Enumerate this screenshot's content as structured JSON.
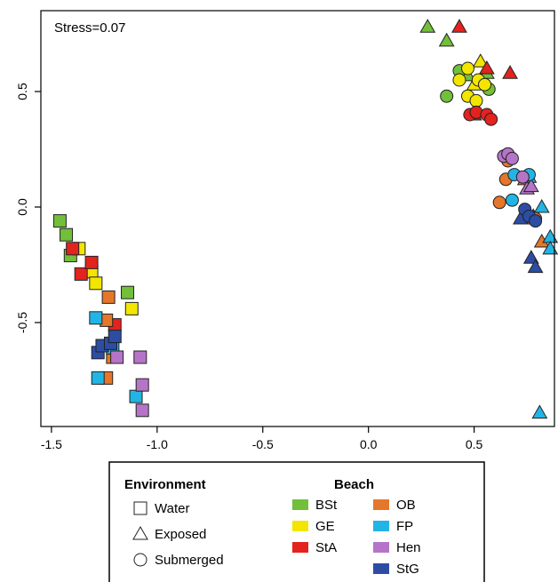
{
  "chart_data": {
    "type": "scatter",
    "annotation": "Stress=0.07",
    "xlabel": "",
    "ylabel": "",
    "xlim": [
      -1.55,
      0.88
    ],
    "ylim": [
      -0.95,
      0.85
    ],
    "xticks": [
      -1.5,
      -1.0,
      -0.5,
      0.0,
      0.5
    ],
    "xtick_labels": [
      "-1.5",
      "-1.0",
      "-0.5",
      "0.0",
      "0.5"
    ],
    "yticks": [
      -0.5,
      0.0,
      0.5
    ],
    "ytick_labels": [
      "-0.5",
      "0.0",
      "0.5"
    ],
    "grid": false,
    "legend_placement": "below",
    "environment_legend": {
      "title": "Environment",
      "items": [
        {
          "label": "Water",
          "shape": "square"
        },
        {
          "label": "Exposed",
          "shape": "triangle"
        },
        {
          "label": "Submerged",
          "shape": "circle"
        }
      ]
    },
    "beach_legend": {
      "title": "Beach",
      "items": [
        {
          "label": "BSt",
          "color": "#72bf3a"
        },
        {
          "label": "GE",
          "color": "#f2e600"
        },
        {
          "label": "StA",
          "color": "#e3231e"
        },
        {
          "label": "OB",
          "color": "#e5772a"
        },
        {
          "label": "FP",
          "color": "#22b4e4"
        },
        {
          "label": "Hen",
          "color": "#b674c8"
        },
        {
          "label": "StG",
          "color": "#2c4da3"
        }
      ]
    },
    "series": [
      {
        "beach": "BSt",
        "shape": "square",
        "points": [
          [
            -1.46,
            -0.06
          ],
          [
            -1.43,
            -0.12
          ],
          [
            -1.41,
            -0.21
          ],
          [
            -1.14,
            -0.37
          ]
        ]
      },
      {
        "beach": "GE",
        "shape": "square",
        "points": [
          [
            -1.37,
            -0.18
          ],
          [
            -1.31,
            -0.28
          ],
          [
            -1.29,
            -0.33
          ],
          [
            -1.12,
            -0.44
          ]
        ]
      },
      {
        "beach": "StA",
        "shape": "square",
        "points": [
          [
            -1.4,
            -0.18
          ],
          [
            -1.36,
            -0.29
          ],
          [
            -1.31,
            -0.24
          ],
          [
            -1.2,
            -0.51
          ]
        ]
      },
      {
        "beach": "OB",
        "shape": "square",
        "points": [
          [
            -1.23,
            -0.39
          ],
          [
            -1.24,
            -0.49
          ],
          [
            -1.21,
            -0.65
          ],
          [
            -1.24,
            -0.74
          ]
        ]
      },
      {
        "beach": "FP",
        "shape": "square",
        "points": [
          [
            -1.29,
            -0.48
          ],
          [
            -1.28,
            -0.74
          ],
          [
            -1.21,
            -0.61
          ],
          [
            -1.1,
            -0.82
          ]
        ]
      },
      {
        "beach": "Hen",
        "shape": "square",
        "points": [
          [
            -1.19,
            -0.65
          ],
          [
            -1.08,
            -0.65
          ],
          [
            -1.07,
            -0.77
          ],
          [
            -1.07,
            -0.88
          ]
        ]
      },
      {
        "beach": "StG",
        "shape": "square",
        "points": [
          [
            -1.28,
            -0.63
          ],
          [
            -1.26,
            -0.6
          ],
          [
            -1.22,
            -0.59
          ],
          [
            -1.2,
            -0.56
          ]
        ]
      },
      {
        "beach": "BSt",
        "shape": "triangle",
        "points": [
          [
            0.28,
            0.78
          ],
          [
            0.37,
            0.72
          ],
          [
            0.47,
            0.57
          ],
          [
            0.56,
            0.58
          ]
        ]
      },
      {
        "beach": "GE",
        "shape": "triangle",
        "points": [
          [
            0.5,
            0.53
          ],
          [
            0.53,
            0.63
          ]
        ]
      },
      {
        "beach": "StA",
        "shape": "triangle",
        "points": [
          [
            0.43,
            0.78
          ],
          [
            0.5,
            0.4
          ],
          [
            0.56,
            0.6
          ],
          [
            0.67,
            0.58
          ]
        ]
      },
      {
        "beach": "OB",
        "shape": "triangle",
        "points": [
          [
            0.74,
            0.12
          ],
          [
            0.76,
            -0.05
          ],
          [
            0.82,
            -0.15
          ]
        ]
      },
      {
        "beach": "FP",
        "shape": "triangle",
        "points": [
          [
            0.76,
            0.13
          ],
          [
            0.82,
            0.0
          ],
          [
            0.86,
            -0.13
          ],
          [
            0.86,
            -0.18
          ],
          [
            0.81,
            -0.89
          ]
        ]
      },
      {
        "beach": "Hen",
        "shape": "triangle",
        "points": [
          [
            0.75,
            0.08
          ],
          [
            0.77,
            0.09
          ]
        ]
      },
      {
        "beach": "StG",
        "shape": "triangle",
        "points": [
          [
            0.72,
            -0.05
          ],
          [
            0.77,
            -0.22
          ],
          [
            0.79,
            -0.26
          ],
          [
            0.78,
            -0.04
          ]
        ]
      },
      {
        "beach": "BSt",
        "shape": "circle",
        "points": [
          [
            0.37,
            0.48
          ],
          [
            0.43,
            0.59
          ],
          [
            0.57,
            0.51
          ]
        ]
      },
      {
        "beach": "GE",
        "shape": "circle",
        "points": [
          [
            0.43,
            0.55
          ],
          [
            0.47,
            0.48
          ],
          [
            0.51,
            0.46
          ],
          [
            0.52,
            0.55
          ],
          [
            0.47,
            0.6
          ],
          [
            0.55,
            0.53
          ]
        ]
      },
      {
        "beach": "StA",
        "shape": "circle",
        "points": [
          [
            0.48,
            0.4
          ],
          [
            0.51,
            0.41
          ],
          [
            0.56,
            0.4
          ],
          [
            0.58,
            0.38
          ]
        ]
      },
      {
        "beach": "OB",
        "shape": "circle",
        "points": [
          [
            0.62,
            0.02
          ],
          [
            0.65,
            0.12
          ],
          [
            0.66,
            0.2
          ],
          [
            0.79,
            -0.05
          ]
        ]
      },
      {
        "beach": "FP",
        "shape": "circle",
        "points": [
          [
            0.69,
            0.14
          ],
          [
            0.68,
            0.03
          ],
          [
            0.76,
            0.14
          ]
        ]
      },
      {
        "beach": "Hen",
        "shape": "circle",
        "points": [
          [
            0.64,
            0.22
          ],
          [
            0.66,
            0.23
          ],
          [
            0.68,
            0.21
          ],
          [
            0.73,
            0.13
          ]
        ]
      },
      {
        "beach": "StG",
        "shape": "circle",
        "points": [
          [
            0.74,
            -0.01
          ],
          [
            0.76,
            -0.04
          ],
          [
            0.79,
            -0.06
          ]
        ]
      }
    ]
  }
}
